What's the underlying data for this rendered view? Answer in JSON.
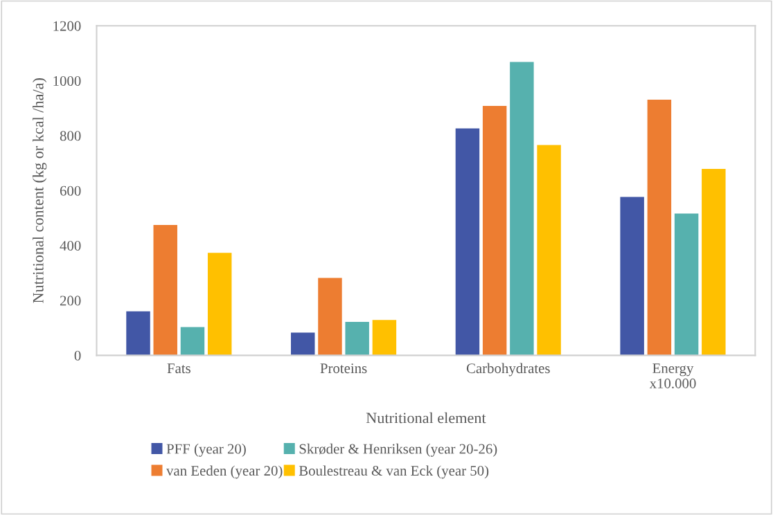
{
  "chart_data": {
    "type": "bar",
    "xlabel": "Nutritional element",
    "ylabel": "Nutritional content (kg or kcal /ha/a)",
    "categories": [
      "Fats",
      "Proteins",
      "Carbohydrates",
      "Energy\nx10.000"
    ],
    "series": [
      {
        "name": "PFF (year 20)",
        "color": "#4257a6",
        "values": [
          160,
          83,
          826,
          577
        ]
      },
      {
        "name": "van Eeden (year 20)",
        "color": "#ed7d31",
        "values": [
          475,
          282,
          908,
          931
        ]
      },
      {
        "name": "Skrøder & Henriksen (year 20-26)",
        "color": "#56b1ae",
        "values": [
          103,
          122,
          1068,
          516
        ]
      },
      {
        "name": "Boulestreau & van Eck (year 50)",
        "color": "#ffc000",
        "values": [
          373,
          129,
          766,
          679
        ]
      }
    ],
    "ylim": [
      0,
      1200
    ],
    "yticks": [
      0,
      200,
      400,
      600,
      800,
      1000,
      1200
    ],
    "grid": false,
    "legend": "bottom"
  }
}
